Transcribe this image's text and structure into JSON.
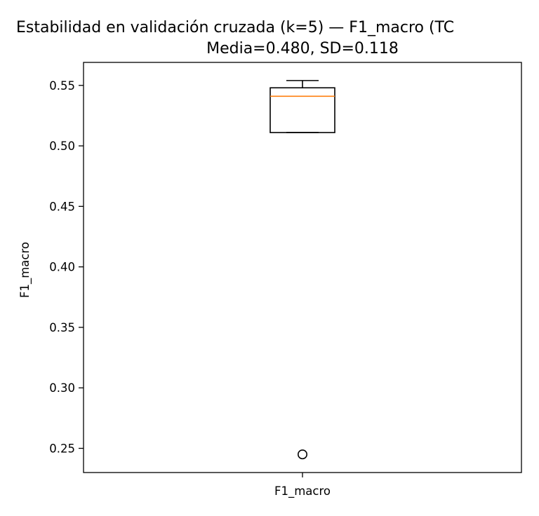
{
  "chart_data": {
    "type": "box",
    "title": "Estabilidad en validación cruzada (k=5) — F1_macro (TC",
    "subtitle": "Media=0.480, SD=0.118",
    "xlabel": "",
    "ylabel": "F1_macro",
    "categories": [
      "F1_macro"
    ],
    "ylim": [
      0.23,
      0.569
    ],
    "yticks": [
      0.25,
      0.3,
      0.35,
      0.4,
      0.45,
      0.5,
      0.55
    ],
    "ytick_labels": [
      "0.25",
      "0.30",
      "0.35",
      "0.40",
      "0.45",
      "0.50",
      "0.55"
    ],
    "boxes": [
      {
        "name": "F1_macro",
        "whisker_low": 0.511,
        "q1": 0.511,
        "median": 0.541,
        "q3": 0.548,
        "whisker_high": 0.554,
        "outliers": [
          0.245
        ]
      }
    ],
    "grid": false,
    "colors": {
      "box": "#000000",
      "median": "#ff7f0e",
      "outlier": "#000000"
    }
  }
}
